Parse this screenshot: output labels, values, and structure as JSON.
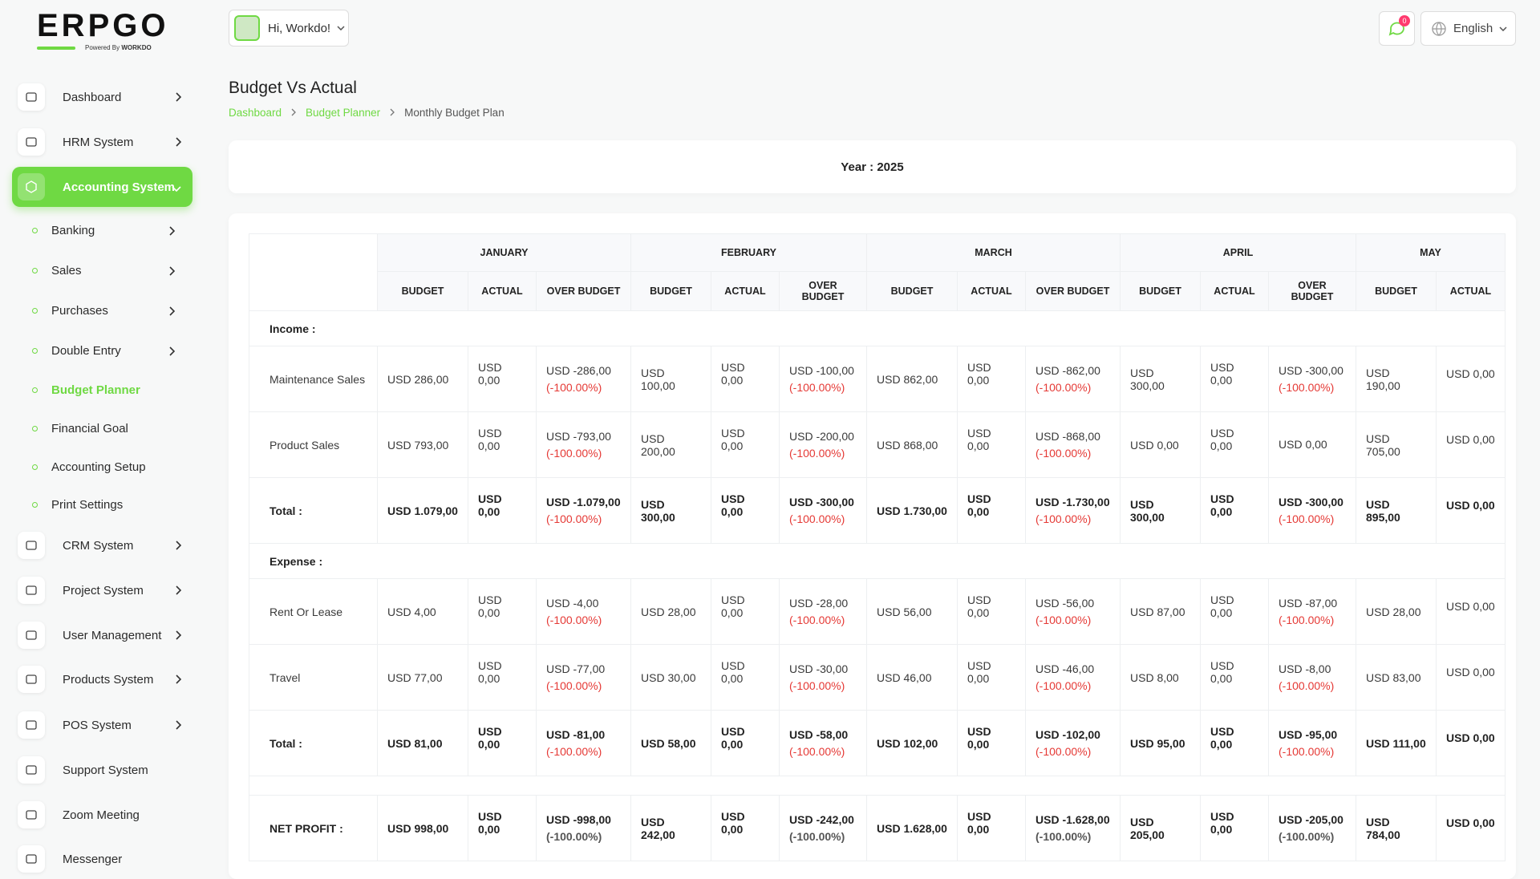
{
  "logo": {
    "name": "ERPGO",
    "tagline": "Powered By",
    "brand": "WORKDO"
  },
  "header": {
    "greeting": "Hi, Workdo!",
    "notifications": 0,
    "language": "English"
  },
  "sidebar": {
    "menu": [
      "Dashboard",
      "HRM System",
      "Accounting System",
      "CRM System",
      "Project System",
      "User Management",
      "Products System",
      "POS System",
      "Support System",
      "Zoom Meeting",
      "Messenger"
    ],
    "submenu": [
      "Banking",
      "Sales",
      "Purchases",
      "Double Entry",
      "Budget Planner",
      "Financial Goal",
      "Accounting Setup",
      "Print Settings"
    ]
  },
  "page": {
    "title": "Budget Vs Actual",
    "breadcrumb": [
      "Dashboard",
      "Budget Planner",
      "Monthly Budget Plan"
    ],
    "year": "Year : 2025"
  },
  "table": {
    "months": [
      "JANUARY",
      "FEBRUARY",
      "MARCH",
      "APRIL",
      "MAY"
    ],
    "columns": [
      "BUDGET",
      "ACTUAL",
      "OVER BUDGET"
    ],
    "income": {
      "label": "Income :",
      "rows": [
        {
          "label": "Maintenance Sales",
          "months": [
            [
              "USD 286,00",
              "USD 0,00",
              "USD -286,00",
              "(-100.00%)"
            ],
            [
              "USD 100,00",
              "USD 0,00",
              "USD -100,00",
              "(-100.00%)"
            ],
            [
              "USD 862,00",
              "USD 0,00",
              "USD -862,00",
              "(-100.00%)"
            ],
            [
              "USD 300,00",
              "USD 0,00",
              "USD -300,00",
              "(-100.00%)"
            ],
            [
              "USD 190,00",
              "USD 0,00"
            ]
          ]
        },
        {
          "label": "Product Sales",
          "months": [
            [
              "USD 793,00",
              "USD 0,00",
              "USD -793,00",
              "(-100.00%)"
            ],
            [
              "USD 200,00",
              "USD 0,00",
              "USD -200,00",
              "(-100.00%)"
            ],
            [
              "USD 868,00",
              "USD 0,00",
              "USD -868,00",
              "(-100.00%)"
            ],
            [
              "USD 0,00",
              "USD 0,00",
              "USD 0,00"
            ],
            [
              "USD 705,00",
              "USD 0,00"
            ]
          ]
        }
      ],
      "total": {
        "label": "Total :",
        "months": [
          [
            "USD 1.079,00",
            "USD 0,00",
            "USD -1.079,00",
            "(-100.00%)"
          ],
          [
            "USD 300,00",
            "USD 0,00",
            "USD -300,00",
            "(-100.00%)"
          ],
          [
            "USD 1.730,00",
            "USD 0,00",
            "USD -1.730,00",
            "(-100.00%)"
          ],
          [
            "USD 300,00",
            "USD 0,00",
            "USD -300,00",
            "(-100.00%)"
          ],
          [
            "USD 895,00",
            "USD 0,00"
          ]
        ]
      }
    },
    "expense": {
      "label": "Expense :",
      "rows": [
        {
          "label": "Rent Or Lease",
          "months": [
            [
              "USD 4,00",
              "USD 0,00",
              "USD -4,00",
              "(-100.00%)"
            ],
            [
              "USD 28,00",
              "USD 0,00",
              "USD -28,00",
              "(-100.00%)"
            ],
            [
              "USD 56,00",
              "USD 0,00",
              "USD -56,00",
              "(-100.00%)"
            ],
            [
              "USD 87,00",
              "USD 0,00",
              "USD -87,00",
              "(-100.00%)"
            ],
            [
              "USD 28,00",
              "USD 0,00"
            ]
          ]
        },
        {
          "label": "Travel",
          "months": [
            [
              "USD 77,00",
              "USD 0,00",
              "USD -77,00",
              "(-100.00%)"
            ],
            [
              "USD 30,00",
              "USD 0,00",
              "USD -30,00",
              "(-100.00%)"
            ],
            [
              "USD 46,00",
              "USD 0,00",
              "USD -46,00",
              "(-100.00%)"
            ],
            [
              "USD 8,00",
              "USD 0,00",
              "USD -8,00",
              "(-100.00%)"
            ],
            [
              "USD 83,00",
              "USD 0,00"
            ]
          ]
        }
      ],
      "total": {
        "label": "Total :",
        "months": [
          [
            "USD 81,00",
            "USD 0,00",
            "USD -81,00",
            "(-100.00%)"
          ],
          [
            "USD 58,00",
            "USD 0,00",
            "USD -58,00",
            "(-100.00%)"
          ],
          [
            "USD 102,00",
            "USD 0,00",
            "USD -102,00",
            "(-100.00%)"
          ],
          [
            "USD 95,00",
            "USD 0,00",
            "USD -95,00",
            "(-100.00%)"
          ],
          [
            "USD 111,00",
            "USD 0,00"
          ]
        ]
      }
    },
    "net_profit": {
      "label": "NET PROFIT :",
      "months": [
        [
          "USD 998,00",
          "USD 0,00",
          "USD -998,00",
          "(-100.00%)"
        ],
        [
          "USD 242,00",
          "USD 0,00",
          "USD -242,00",
          "(-100.00%)"
        ],
        [
          "USD 1.628,00",
          "USD 0,00",
          "USD -1.628,00",
          "(-100.00%)"
        ],
        [
          "USD 205,00",
          "USD 0,00",
          "USD -205,00",
          "(-100.00%)"
        ],
        [
          "USD 784,00",
          "USD 0,00"
        ]
      ]
    }
  }
}
